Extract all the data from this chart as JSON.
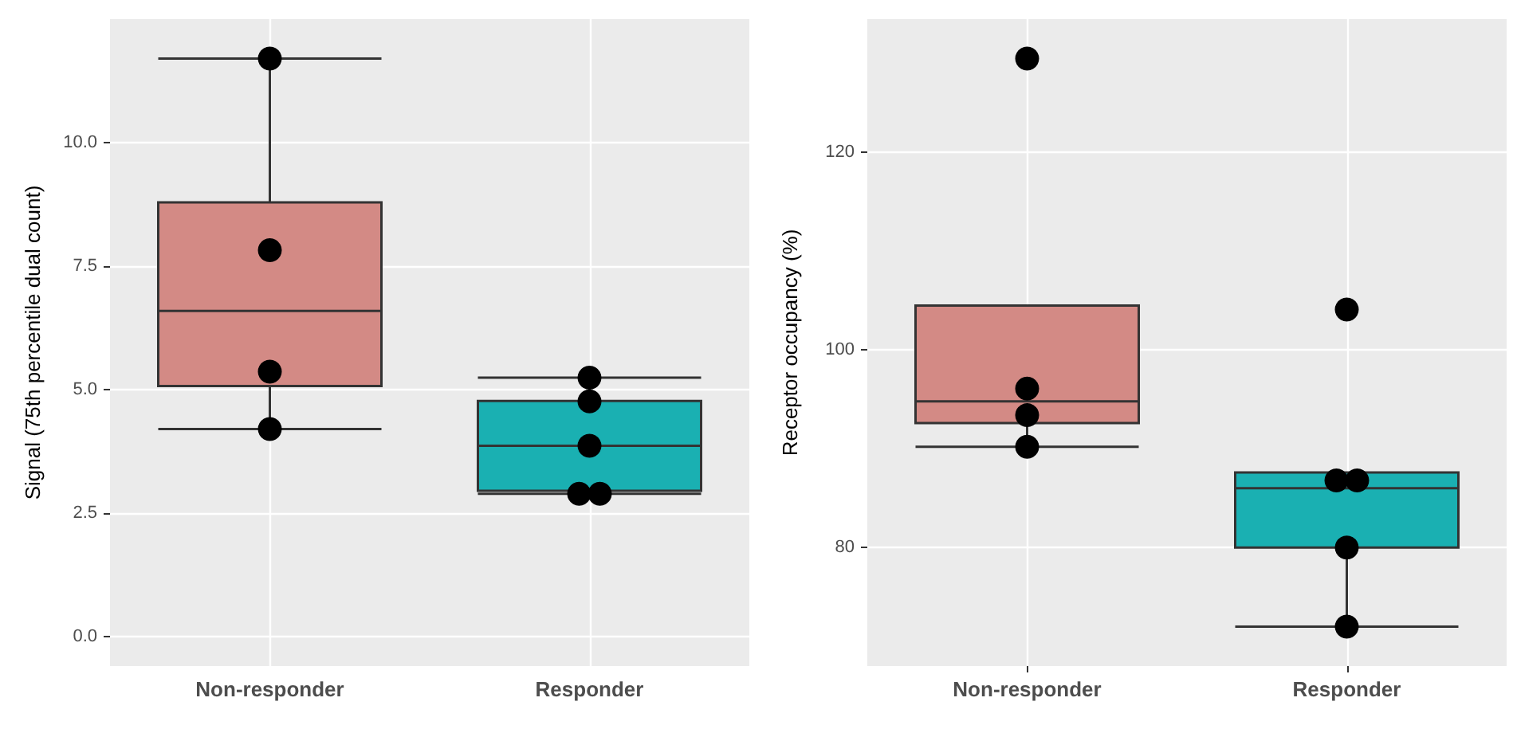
{
  "chart_data": [
    {
      "type": "box",
      "ylabel": "Signal (75th percentile dual count)",
      "categories": [
        "Non-responder",
        "Responder"
      ],
      "ylim": [
        -0.6,
        12.5
      ],
      "yticks": [
        {
          "value": 0,
          "label": "0.0"
        },
        {
          "value": 2.5,
          "label": "2.5"
        },
        {
          "value": 5,
          "label": "5.0"
        },
        {
          "value": 7.5,
          "label": "7.5"
        },
        {
          "value": 10,
          "label": "10.0"
        }
      ],
      "grid": true,
      "series": [
        {
          "colors": [
            "#d38a85",
            "#1ab0b2"
          ],
          "boxes": [
            {
              "low": 4.2,
              "q1": 5.07,
              "median": 6.59,
              "q3": 8.79,
              "high": 11.7
            },
            {
              "low": 2.89,
              "q1": 2.95,
              "median": 3.86,
              "q3": 4.77,
              "high": 5.24
            }
          ]
        },
        {
          "type": "scatter",
          "color": "#000000",
          "marker": "circle",
          "x": [
            "Non-responder",
            "Non-responder",
            "Non-responder",
            "Non-responder",
            "Responder",
            "Responder",
            "Responder",
            "Responder",
            "Responder"
          ],
          "values": [
            11.7,
            7.82,
            5.36,
            4.2,
            5.24,
            4.76,
            3.86,
            2.89,
            2.89
          ]
        }
      ]
    },
    {
      "type": "box",
      "ylabel": "Receptor occupancy (%)",
      "categories": [
        "Non-responder",
        "Responder"
      ],
      "ylim": [
        68,
        133.5
      ],
      "yticks": [
        80,
        100,
        120
      ],
      "grid": true,
      "series": [
        {
          "colors": [
            "#d38a85",
            "#1ab0b2"
          ],
          "boxes": [
            {
              "low": 90.2,
              "q1": 92.6,
              "median": 94.8,
              "q3": 104.5,
              "high": 104.5
            },
            {
              "low": 72,
              "q1": 80,
              "median": 86,
              "q3": 87.6,
              "high": 87.6
            }
          ]
        },
        {
          "type": "scatter",
          "color": "#000000",
          "marker": "circle",
          "x": [
            "Non-responder",
            "Non-responder",
            "Non-responder",
            "Non-responder",
            "Responder",
            "Responder",
            "Responder",
            "Responder",
            "Responder"
          ],
          "values": [
            129.5,
            96.1,
            93.4,
            90.2,
            104.1,
            86.8,
            86.8,
            80,
            72
          ]
        }
      ]
    }
  ]
}
